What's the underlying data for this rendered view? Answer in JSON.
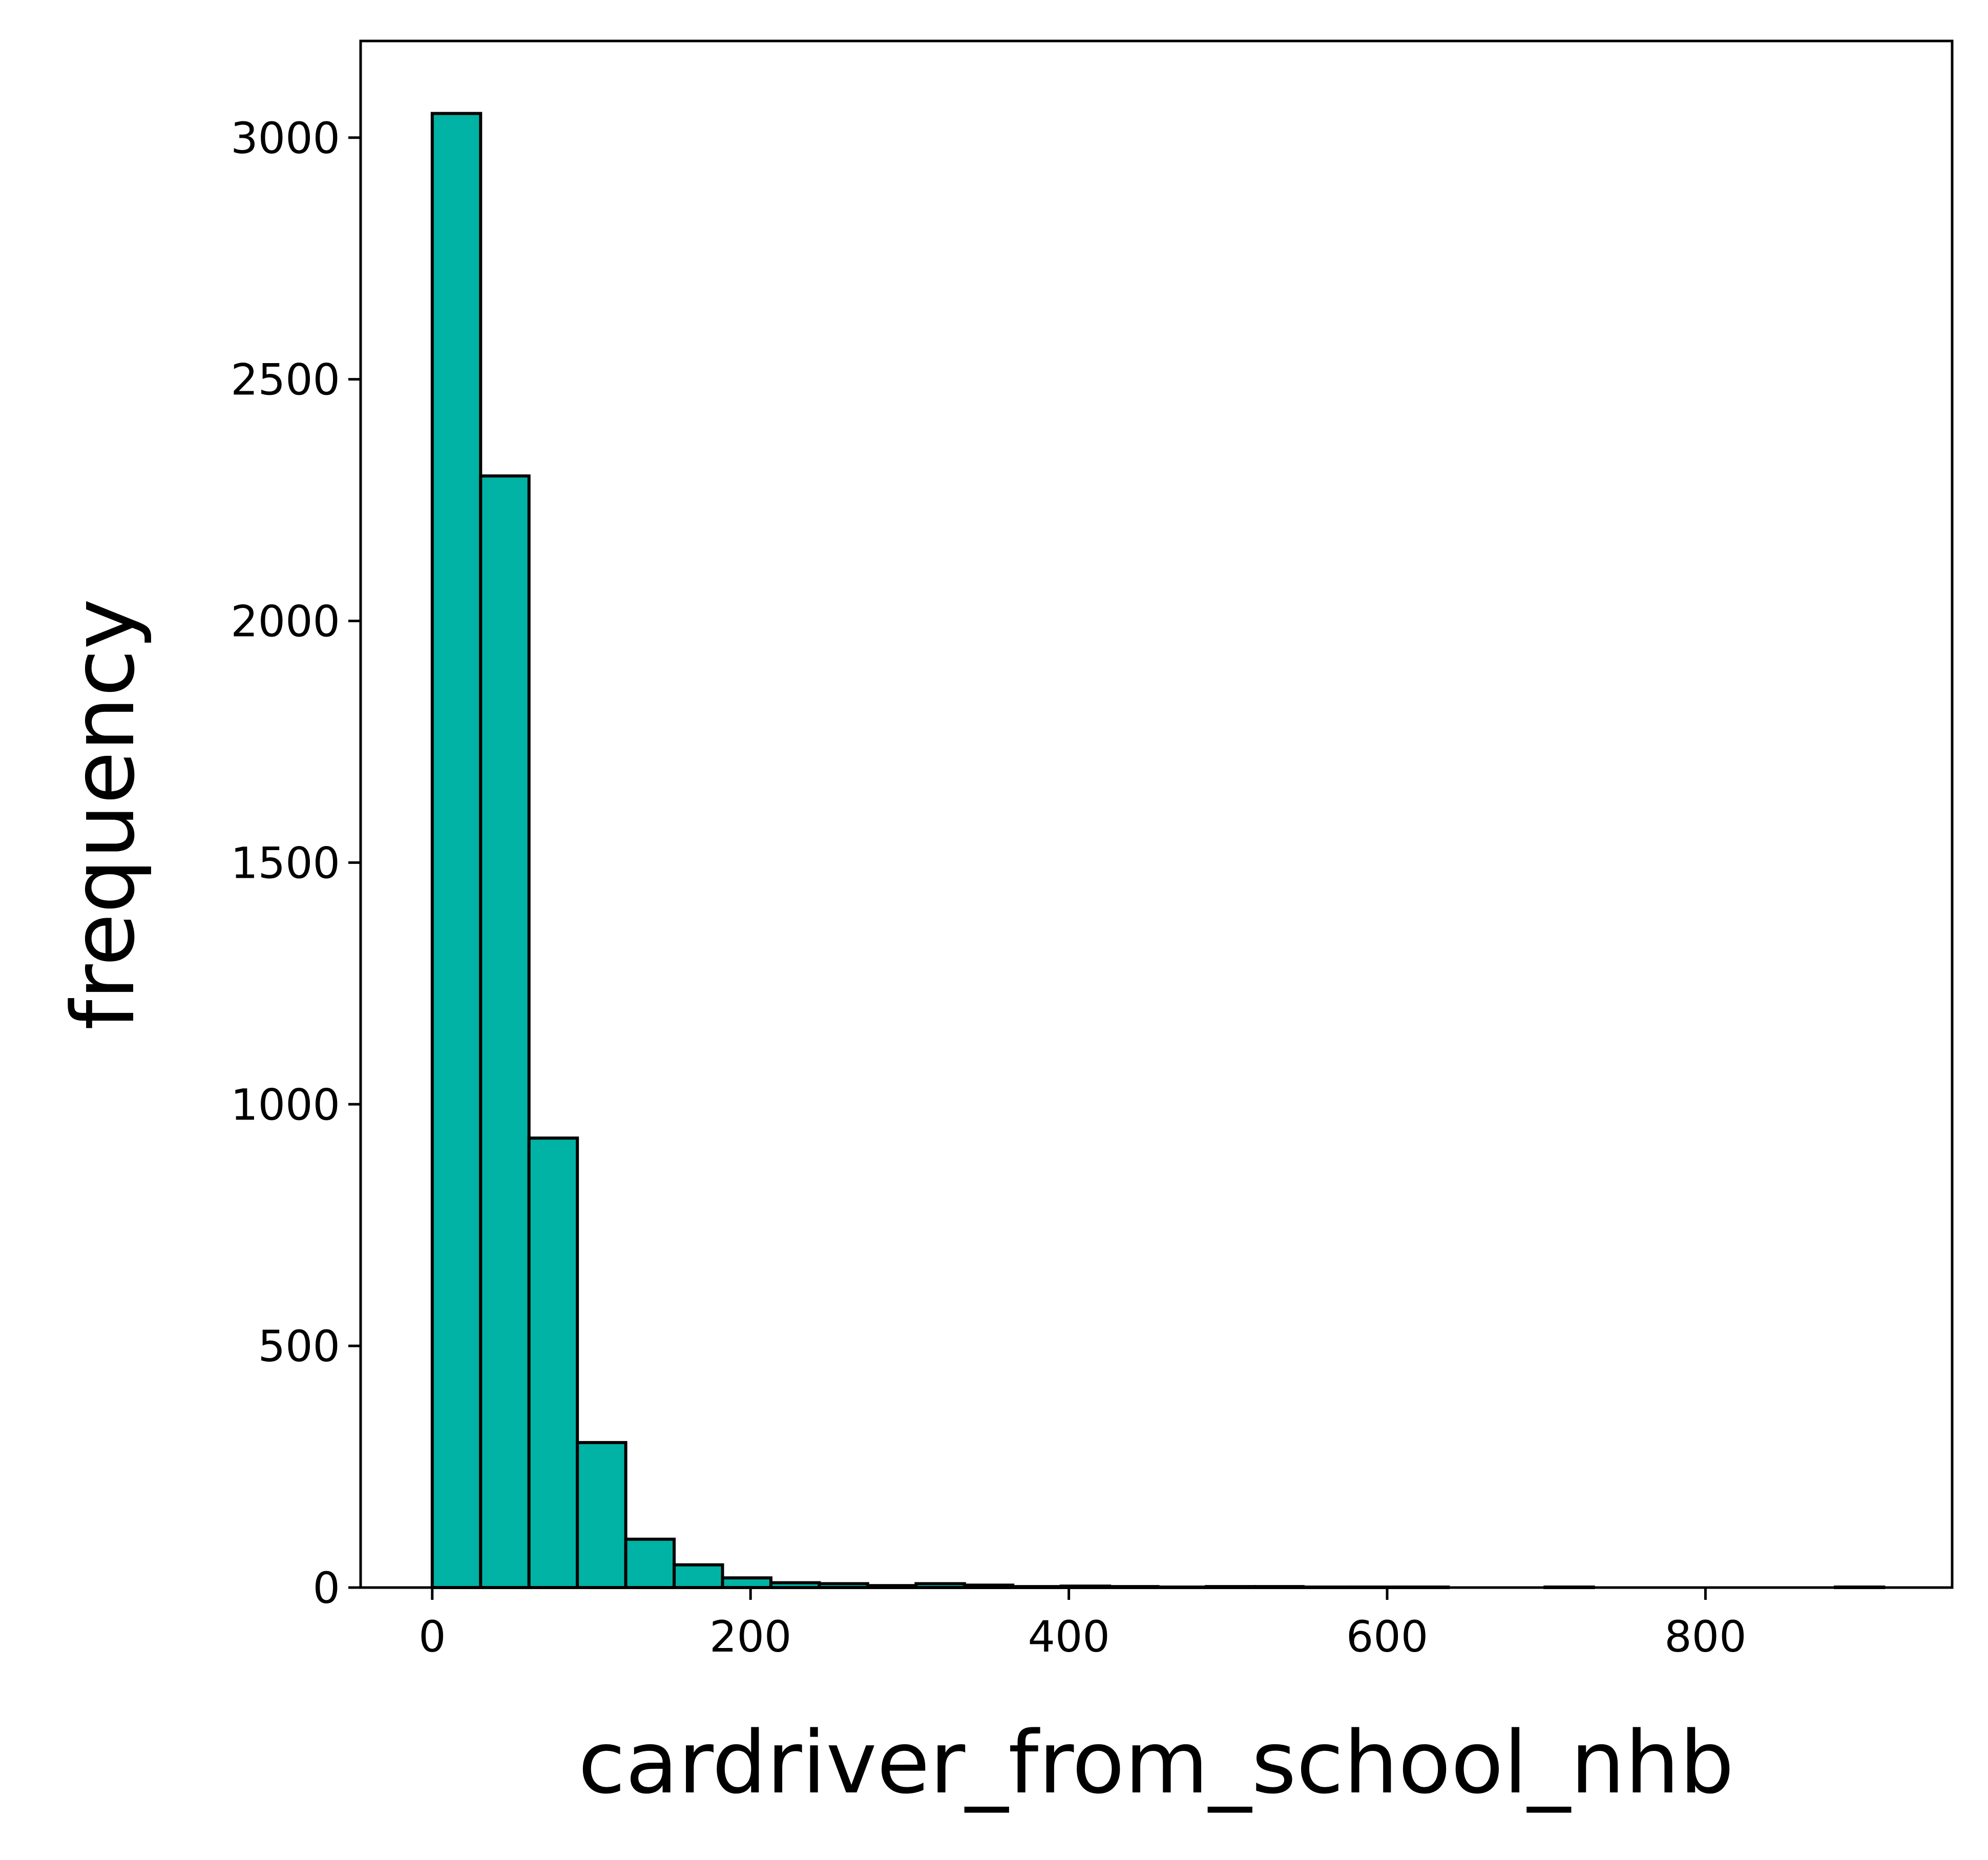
{
  "chart_data": {
    "type": "bar",
    "title": "",
    "xlabel": "cardriver_from_school_nhb",
    "ylabel": "frequency",
    "xlim": [
      -45,
      955
    ],
    "ylim": [
      0,
      3200
    ],
    "xticks": [
      0,
      200,
      400,
      600,
      800
    ],
    "yticks": [
      0,
      500,
      1000,
      1500,
      2000,
      2500,
      3000
    ],
    "bin_edges": [
      0,
      30.4,
      60.8,
      91.2,
      121.6,
      152,
      182.4,
      212.8,
      243.2,
      273.6,
      304,
      334.4,
      364.8,
      395.2,
      425.6,
      456,
      486.4,
      516.8,
      547.2,
      577.6,
      608,
      638.4,
      668.8,
      699.2,
      729.6,
      760,
      790.4,
      820.8,
      851.2,
      881.6,
      912
    ],
    "values": [
      3050,
      2300,
      930,
      300,
      100,
      47,
      20,
      10,
      8,
      4,
      8,
      5,
      2,
      3,
      2,
      1,
      2,
      2,
      1,
      1,
      1,
      0,
      0,
      1,
      0,
      0,
      0,
      0,
      0,
      1
    ],
    "grid": false,
    "legend": "none",
    "colors": {
      "bar_fill": "#00b3a4",
      "bar_edge": "#000000",
      "axis": "#000000",
      "background": "#ffffff"
    }
  }
}
